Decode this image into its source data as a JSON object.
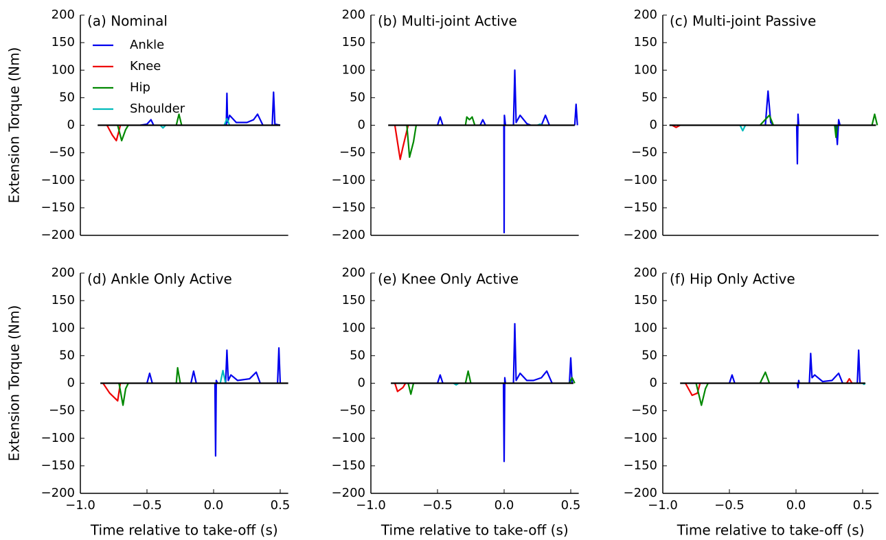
{
  "chart_data": [
    {
      "type": "line",
      "title": "(a) Nominal",
      "ylabel": "Extension Torque (Nm)",
      "legend": "upper left",
      "xlim": [
        -1.0,
        0.56
      ],
      "ylim": [
        -200,
        200
      ],
      "yticks": [
        200,
        150,
        100,
        50,
        0,
        {
          "value": -50,
          "label": "−50"
        },
        {
          "value": -100,
          "label": "−100"
        },
        {
          "value": -150,
          "label": "−150"
        },
        {
          "value": -200,
          "label": "−200"
        }
      ],
      "reference_line": {
        "x": [
          -0.87,
          0.5
        ],
        "values": [
          0,
          0
        ],
        "color": "#000000"
      },
      "series": [
        {
          "name": "Ankle",
          "color": "#0000ee",
          "x": [
            -0.55,
            -0.5,
            -0.47,
            -0.45,
            null,
            0.095,
            0.1,
            0.105,
            0.12,
            0.17,
            0.25,
            0.3,
            0.33,
            0.37,
            null,
            0.44,
            0.45,
            0.46,
            0.5
          ],
          "values": [
            0,
            2,
            10,
            0,
            null,
            0,
            58,
            5,
            18,
            5,
            5,
            10,
            20,
            0,
            null,
            0,
            60,
            2,
            0
          ]
        },
        {
          "name": "Knee",
          "color": "#ee0000",
          "x": [
            -0.8,
            -0.76,
            -0.73,
            -0.71,
            -0.7
          ],
          "values": [
            0,
            -18,
            -28,
            -10,
            0
          ]
        },
        {
          "name": "Hip",
          "color": "#008800",
          "x": [
            -0.72,
            -0.69,
            -0.66,
            -0.64,
            null,
            -0.28,
            -0.26,
            -0.24
          ],
          "values": [
            0,
            -28,
            -8,
            0,
            null,
            0,
            20,
            0
          ]
        },
        {
          "name": "Shoulder",
          "color": "#00bbbb",
          "x": [
            -0.4,
            -0.38,
            -0.36,
            null,
            0.08,
            0.1,
            0.12
          ],
          "values": [
            0,
            -5,
            0,
            null,
            0,
            12,
            0
          ]
        }
      ]
    },
    {
      "type": "line",
      "title": "(b) Multi-joint Active",
      "xlim": [
        -1.0,
        0.56
      ],
      "ylim": [
        -200,
        200
      ],
      "yticks": [
        200,
        150,
        100,
        50,
        0,
        {
          "value": -50,
          "label": "−50"
        },
        {
          "value": -100,
          "label": "−100"
        },
        {
          "value": -150,
          "label": "−150"
        },
        {
          "value": -200,
          "label": "−200"
        }
      ],
      "reference_line": {
        "x": [
          -0.87,
          0.53
        ],
        "values": [
          0,
          0
        ],
        "color": "#000000"
      },
      "series": [
        {
          "name": "Ankle",
          "color": "#0000ee",
          "x": [
            -0.5,
            -0.48,
            -0.46,
            null,
            -0.18,
            -0.16,
            -0.14,
            null,
            -0.002,
            0.0,
            0.002,
            0.01,
            null,
            0.07,
            0.08,
            0.09,
            0.12,
            0.17,
            0.2,
            null,
            0.28,
            0.31,
            0.34,
            null,
            0.53,
            0.54,
            0.55
          ],
          "values": [
            0,
            15,
            0,
            null,
            0,
            10,
            0,
            null,
            0,
            -195,
            18,
            0,
            null,
            0,
            100,
            5,
            18,
            3,
            0,
            null,
            0,
            18,
            0,
            null,
            0,
            38,
            0
          ]
        },
        {
          "name": "Knee",
          "color": "#ee0000",
          "x": [
            -0.82,
            -0.78,
            -0.76,
            -0.74,
            -0.72
          ],
          "values": [
            0,
            -62,
            -40,
            -20,
            0
          ]
        },
        {
          "name": "Hip",
          "color": "#008800",
          "x": [
            -0.73,
            -0.71,
            -0.68,
            -0.66,
            null,
            -0.29,
            -0.28,
            -0.26,
            -0.24,
            -0.22
          ],
          "values": [
            0,
            -58,
            -30,
            0,
            null,
            0,
            15,
            10,
            15,
            0
          ]
        },
        {
          "name": "Shoulder",
          "color": "#00bbbb",
          "x": [
            0.25,
            0.27,
            0.29
          ],
          "values": [
            0,
            2,
            0
          ]
        }
      ]
    },
    {
      "type": "line",
      "title": "(c) Multi-joint Passive",
      "xlim": [
        -1.0,
        0.62
      ],
      "ylim": [
        -200,
        200
      ],
      "yticks": [
        200,
        150,
        100,
        50,
        0,
        {
          "value": -50,
          "label": "−50"
        },
        {
          "value": -100,
          "label": "−100"
        },
        {
          "value": -150,
          "label": "−150"
        },
        {
          "value": -200,
          "label": "−200"
        }
      ],
      "reference_line": {
        "x": [
          -0.95,
          0.6
        ],
        "values": [
          0,
          0
        ],
        "color": "#000000"
      },
      "series": [
        {
          "name": "Ankle",
          "color": "#0000ee",
          "x": [
            -0.23,
            -0.21,
            -0.19,
            -0.17,
            null,
            0.005,
            0.01,
            0.015,
            0.02,
            null,
            0.3,
            0.31,
            0.32,
            0.33
          ],
          "values": [
            0,
            62,
            5,
            0,
            null,
            0,
            -70,
            20,
            0,
            null,
            0,
            -35,
            10,
            0
          ]
        },
        {
          "name": "Knee",
          "color": "#ee0000",
          "x": [
            -0.93,
            -0.9,
            -0.87
          ],
          "values": [
            0,
            -4,
            0
          ]
        },
        {
          "name": "Hip",
          "color": "#008800",
          "x": [
            -0.27,
            -0.24,
            -0.2,
            -0.17,
            null,
            0.29,
            0.3,
            0.31,
            null,
            0.57,
            0.59,
            0.61
          ],
          "values": [
            0,
            8,
            18,
            0,
            null,
            0,
            -22,
            0,
            null,
            0,
            20,
            0
          ]
        },
        {
          "name": "Shoulder",
          "color": "#00bbbb",
          "x": [
            -0.42,
            -0.4,
            -0.38
          ],
          "values": [
            0,
            -10,
            0
          ]
        }
      ]
    },
    {
      "type": "line",
      "title": "(d) Ankle Only Active",
      "ylabel": "Extension Torque (Nm)",
      "xlabel": "Time relative to take-off (s)",
      "xlim": [
        -1.0,
        0.56
      ],
      "ylim": [
        -200,
        200
      ],
      "xticks": [
        {
          "value": -1.0,
          "label": "−1.0"
        },
        {
          "value": -0.5,
          "label": "−0.5"
        },
        {
          "value": 0,
          "label": "0.0"
        },
        0.5
      ],
      "yticks": [
        200,
        150,
        100,
        50,
        0,
        {
          "value": -50,
          "label": "−50"
        },
        {
          "value": -100,
          "label": "−100"
        },
        {
          "value": -150,
          "label": "−150"
        },
        {
          "value": -200,
          "label": "−200"
        }
      ],
      "reference_line": {
        "x": [
          -0.85,
          0.56
        ],
        "values": [
          0,
          0
        ],
        "color": "#000000"
      },
      "series": [
        {
          "name": "Ankle",
          "color": "#0000ee",
          "x": [
            -0.5,
            -0.48,
            -0.46,
            null,
            -0.17,
            -0.15,
            -0.13,
            null,
            0.01,
            0.015,
            0.02,
            0.03,
            null,
            0.09,
            0.1,
            0.11,
            0.13,
            0.18,
            0.27,
            0.32,
            0.35,
            null,
            0.48,
            0.49,
            0.5
          ],
          "values": [
            0,
            18,
            0,
            null,
            0,
            22,
            0,
            null,
            0,
            -132,
            5,
            0,
            null,
            0,
            60,
            5,
            15,
            5,
            8,
            20,
            0,
            null,
            0,
            64,
            0
          ]
        },
        {
          "name": "Knee",
          "color": "#ee0000",
          "x": [
            -0.83,
            -0.78,
            -0.72,
            -0.7
          ],
          "values": [
            0,
            -18,
            -32,
            0
          ]
        },
        {
          "name": "Hip",
          "color": "#008800",
          "x": [
            -0.71,
            -0.68,
            -0.66,
            -0.64,
            null,
            -0.28,
            -0.27,
            -0.25
          ],
          "values": [
            0,
            -40,
            -10,
            0,
            null,
            0,
            28,
            0
          ]
        },
        {
          "name": "Shoulder",
          "color": "#00bbbb",
          "x": [
            0.05,
            0.07,
            0.09
          ],
          "values": [
            0,
            23,
            0
          ]
        }
      ]
    },
    {
      "type": "line",
      "title": "(e) Knee Only Active",
      "xlabel": "Time relative to take-off (s)",
      "xlim": [
        -1.0,
        0.56
      ],
      "ylim": [
        -200,
        200
      ],
      "xticks": [
        {
          "value": -1.0,
          "label": "−1.0"
        },
        {
          "value": -0.5,
          "label": "−0.5"
        },
        {
          "value": 0,
          "label": "0.0"
        },
        0.5
      ],
      "yticks": [
        200,
        150,
        100,
        50,
        0,
        {
          "value": -50,
          "label": "−50"
        },
        {
          "value": -100,
          "label": "−100"
        },
        {
          "value": -150,
          "label": "−150"
        },
        {
          "value": -200,
          "label": "−200"
        }
      ],
      "reference_line": {
        "x": [
          -0.85,
          0.52
        ],
        "values": [
          0,
          0
        ],
        "color": "#000000"
      },
      "series": [
        {
          "name": "Ankle",
          "color": "#0000ee",
          "x": [
            -0.5,
            -0.48,
            -0.46,
            null,
            -0.005,
            0.0,
            0.005,
            0.01,
            null,
            0.07,
            0.08,
            0.09,
            0.12,
            0.17,
            0.22,
            0.28,
            0.32,
            0.36,
            null,
            0.49,
            0.5,
            0.51
          ],
          "values": [
            0,
            15,
            0,
            null,
            0,
            -142,
            10,
            0,
            null,
            0,
            108,
            5,
            18,
            5,
            5,
            10,
            22,
            0,
            null,
            0,
            46,
            0
          ]
        },
        {
          "name": "Knee",
          "color": "#ee0000",
          "x": [
            -0.82,
            -0.8,
            -0.76,
            -0.74
          ],
          "values": [
            0,
            -15,
            -8,
            0
          ]
        },
        {
          "name": "Hip",
          "color": "#008800",
          "x": [
            -0.72,
            -0.7,
            -0.68,
            null,
            -0.29,
            -0.27,
            -0.25,
            null,
            0.49,
            0.51,
            0.53
          ],
          "values": [
            0,
            -20,
            0,
            null,
            0,
            22,
            0,
            null,
            0,
            10,
            0
          ]
        },
        {
          "name": "Shoulder",
          "color": "#00bbbb",
          "x": [
            -0.38,
            -0.36,
            -0.34
          ],
          "values": [
            0,
            -3,
            0
          ]
        }
      ]
    },
    {
      "type": "line",
      "title": "(f) Hip Only Active",
      "xlabel": "Time relative to take-off (s)",
      "xlim": [
        -1.0,
        0.62
      ],
      "ylim": [
        -200,
        200
      ],
      "xticks": [
        {
          "value": -1.0,
          "label": "−1.0"
        },
        {
          "value": -0.5,
          "label": "−0.5"
        },
        {
          "value": 0,
          "label": "0.0"
        },
        0.5
      ],
      "yticks": [
        200,
        150,
        100,
        50,
        0,
        {
          "value": -50,
          "label": "−50"
        },
        {
          "value": -100,
          "label": "−100"
        },
        {
          "value": -150,
          "label": "−150"
        },
        {
          "value": -200,
          "label": "−200"
        }
      ],
      "reference_line": {
        "x": [
          -0.87,
          0.52
        ],
        "values": [
          0,
          0
        ],
        "color": "#000000"
      },
      "series": [
        {
          "name": "Ankle",
          "color": "#0000ee",
          "x": [
            -0.5,
            -0.48,
            -0.46,
            null,
            0.01,
            0.015,
            0.02,
            0.025,
            null,
            0.1,
            0.11,
            0.12,
            0.14,
            0.2,
            0.27,
            0.32,
            0.35,
            null,
            0.46,
            0.47,
            0.48
          ],
          "values": [
            0,
            15,
            0,
            null,
            0,
            -8,
            5,
            0,
            null,
            0,
            54,
            10,
            15,
            3,
            5,
            18,
            0,
            null,
            0,
            60,
            0
          ]
        },
        {
          "name": "Knee",
          "color": "#ee0000",
          "x": [
            -0.83,
            -0.78,
            -0.74,
            -0.72,
            null,
            0.38,
            0.4,
            0.42
          ],
          "values": [
            0,
            -22,
            -18,
            0,
            null,
            0,
            8,
            0
          ]
        },
        {
          "name": "Hip",
          "color": "#008800",
          "x": [
            -0.75,
            -0.71,
            -0.68,
            -0.66,
            null,
            -0.27,
            -0.23,
            -0.2
          ],
          "values": [
            0,
            -40,
            -10,
            0,
            null,
            0,
            20,
            0
          ]
        },
        {
          "name": "Shoulder",
          "color": "#00bbbb",
          "x": [
            0.5,
            0.51,
            0.52
          ],
          "values": [
            0,
            -2,
            0
          ]
        }
      ]
    }
  ]
}
